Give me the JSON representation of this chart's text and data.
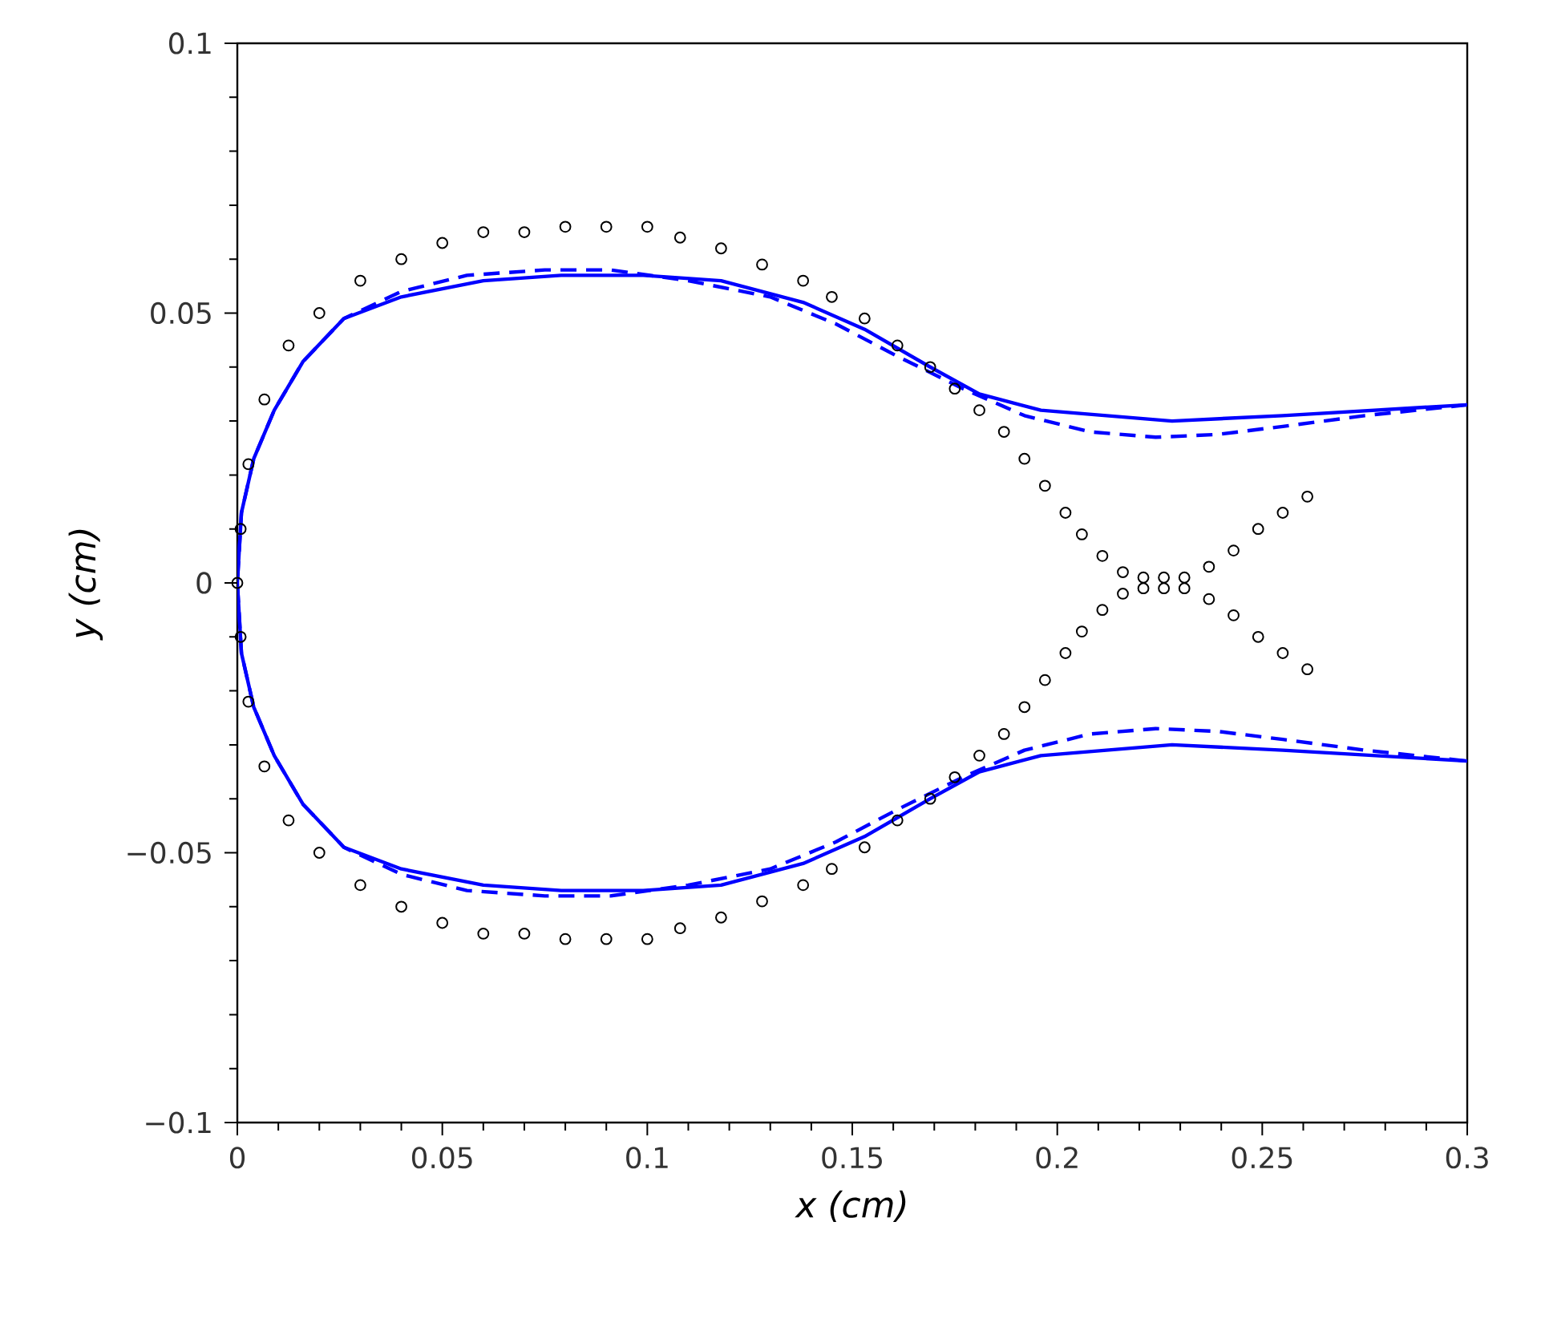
{
  "chart_data": {
    "type": "scatter",
    "xlabel": "x (cm)",
    "ylabel": "y (cm)",
    "xlim": [
      0,
      0.3
    ],
    "ylim": [
      -0.1,
      0.1
    ],
    "xticks": [
      0,
      0.05,
      0.1,
      0.15,
      0.2,
      0.25,
      0.3
    ],
    "yticks": [
      {
        "value": -0.1,
        "label": "−0.1"
      },
      {
        "value": -0.05,
        "label": "−0.05"
      },
      0,
      0.05,
      0.1
    ],
    "grid": false,
    "series": [
      {
        "color": "#000000",
        "marker": "circle",
        "x": [
          0.261,
          0.255,
          0.249,
          0.243,
          0.237,
          0.231,
          0.226,
          0.221,
          0.216,
          0.211,
          0.206,
          0.202,
          0.197,
          0.192,
          0.187,
          0.181,
          0.175,
          0.169,
          0.161,
          0.153,
          0.145,
          0.138,
          0.128,
          0.118,
          0.108,
          0.1,
          0.09,
          0.08,
          0.07,
          0.06,
          0.05,
          0.04,
          0.03,
          0.02,
          0.0125,
          0.0066,
          0.0027,
          0.0008,
          0,
          0.0008,
          0.0027,
          0.0066,
          0.0125,
          0.02,
          0.03,
          0.04,
          0.05,
          0.06,
          0.07,
          0.08,
          0.09,
          0.1,
          0.108,
          0.118,
          0.128,
          0.138,
          0.145,
          0.153,
          0.161,
          0.169,
          0.175,
          0.181,
          0.187,
          0.192,
          0.197,
          0.202,
          0.206,
          0.211,
          0.216,
          0.221,
          0.226,
          0.231,
          0.237,
          0.243,
          0.249,
          0.255,
          0.261
        ],
        "values": [
          0.016,
          0.013,
          0.01,
          0.006,
          0.003,
          0.001,
          0.001,
          0.001,
          0.002,
          0.005,
          0.009,
          0.013,
          0.018,
          0.023,
          0.028,
          0.032,
          0.036,
          0.04,
          0.044,
          0.049,
          0.053,
          0.056,
          0.059,
          0.062,
          0.064,
          0.066,
          0.066,
          0.066,
          0.065,
          0.065,
          0.063,
          0.06,
          0.056,
          0.05,
          0.044,
          0.034,
          0.022,
          0.01,
          0,
          -0.01,
          -0.022,
          -0.034,
          -0.044,
          -0.05,
          -0.056,
          -0.06,
          -0.063,
          -0.065,
          -0.065,
          -0.066,
          -0.066,
          -0.066,
          -0.064,
          -0.062,
          -0.059,
          -0.056,
          -0.053,
          -0.049,
          -0.044,
          -0.04,
          -0.036,
          -0.032,
          -0.028,
          -0.023,
          -0.018,
          -0.013,
          -0.009,
          -0.005,
          -0.002,
          -0.001,
          -0.001,
          -0.001,
          -0.003,
          -0.006,
          -0.01,
          -0.013,
          -0.016
        ]
      },
      {
        "type": "line",
        "color": "#0000ff",
        "line_style": "solid",
        "x": [
          0.3,
          0.255,
          0.228,
          0.196,
          0.181,
          0.169,
          0.153,
          0.138,
          0.118,
          0.099,
          0.079,
          0.06,
          0.04,
          0.026,
          0.016,
          0.009,
          0.004,
          0.001,
          0,
          0.001,
          0.004,
          0.009,
          0.016,
          0.026,
          0.04,
          0.06,
          0.079,
          0.099,
          0.118,
          0.138,
          0.153,
          0.169,
          0.181,
          0.196,
          0.228,
          0.255,
          0.3
        ],
        "values": [
          0.033,
          0.031,
          0.03,
          0.032,
          0.035,
          0.04,
          0.047,
          0.052,
          0.056,
          0.057,
          0.057,
          0.056,
          0.053,
          0.049,
          0.041,
          0.032,
          0.023,
          0.013,
          0,
          -0.013,
          -0.023,
          -0.032,
          -0.041,
          -0.049,
          -0.053,
          -0.056,
          -0.057,
          -0.057,
          -0.056,
          -0.052,
          -0.047,
          -0.04,
          -0.035,
          -0.032,
          -0.03,
          -0.031,
          -0.033
        ]
      },
      {
        "type": "line",
        "color": "#0000ff",
        "line_style": "dashed",
        "x": [
          0.3,
          0.275,
          0.255,
          0.239,
          0.224,
          0.208,
          0.192,
          0.177,
          0.161,
          0.146,
          0.13,
          0.11,
          0.091,
          0.075,
          0.056,
          0.04,
          0.026,
          0.016,
          0.009,
          0.004,
          0.001,
          0,
          0.001,
          0.004,
          0.009,
          0.016,
          0.026,
          0.04,
          0.056,
          0.075,
          0.091,
          0.11,
          0.13,
          0.146,
          0.161,
          0.177,
          0.192,
          0.208,
          0.224,
          0.239,
          0.255,
          0.275,
          0.3
        ],
        "values": [
          0.033,
          0.031,
          0.029,
          0.0275,
          0.027,
          0.028,
          0.031,
          0.036,
          0.042,
          0.048,
          0.053,
          0.056,
          0.058,
          0.058,
          0.057,
          0.054,
          0.049,
          0.041,
          0.032,
          0.023,
          0.013,
          0,
          -0.013,
          -0.023,
          -0.032,
          -0.041,
          -0.049,
          -0.054,
          -0.057,
          -0.058,
          -0.058,
          -0.056,
          -0.053,
          -0.048,
          -0.042,
          -0.036,
          -0.031,
          -0.028,
          -0.027,
          -0.0275,
          -0.029,
          -0.031,
          -0.033
        ]
      }
    ]
  }
}
